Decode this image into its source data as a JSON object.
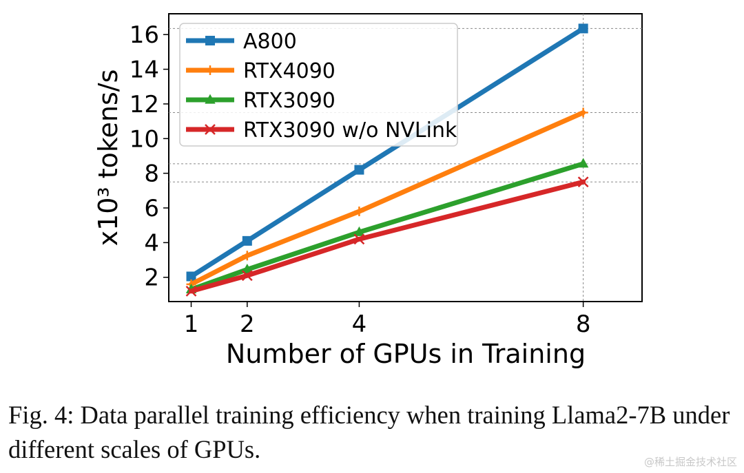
{
  "chart_data": {
    "type": "line",
    "x": [
      1,
      2,
      4,
      8
    ],
    "xticks": [
      1,
      2,
      4,
      8
    ],
    "yticks": [
      2,
      4,
      6,
      8,
      10,
      12,
      14,
      16
    ],
    "xlim": [
      0.6,
      9.05
    ],
    "ylim": [
      0.6,
      17.2
    ],
    "xlabel": "Number of GPUs in Training",
    "ylabel": "x10³ tokens/s",
    "legend": "top-left",
    "grid": "dashed reference lines at 8-GPU values",
    "series": [
      {
        "name": "A800",
        "values": [
          2.05,
          4.1,
          8.2,
          16.35
        ],
        "color": "#1f77b4",
        "marker": "square"
      },
      {
        "name": "RTX4090",
        "values": [
          1.6,
          3.25,
          5.8,
          11.5
        ],
        "color": "#ff7f0e",
        "marker": "plus"
      },
      {
        "name": "RTX3090",
        "values": [
          1.3,
          2.45,
          4.6,
          8.55
        ],
        "color": "#2ca02c",
        "marker": "triangle"
      },
      {
        "name": "RTX3090 w/o NVLink",
        "values": [
          1.2,
          2.1,
          4.2,
          7.5
        ],
        "color": "#d62728",
        "marker": "x"
      }
    ]
  },
  "caption": "Fig. 4: Data parallel training efficiency when training Llama2-7B under different scales of GPUs.",
  "watermark": "@稀土掘金技术社区"
}
